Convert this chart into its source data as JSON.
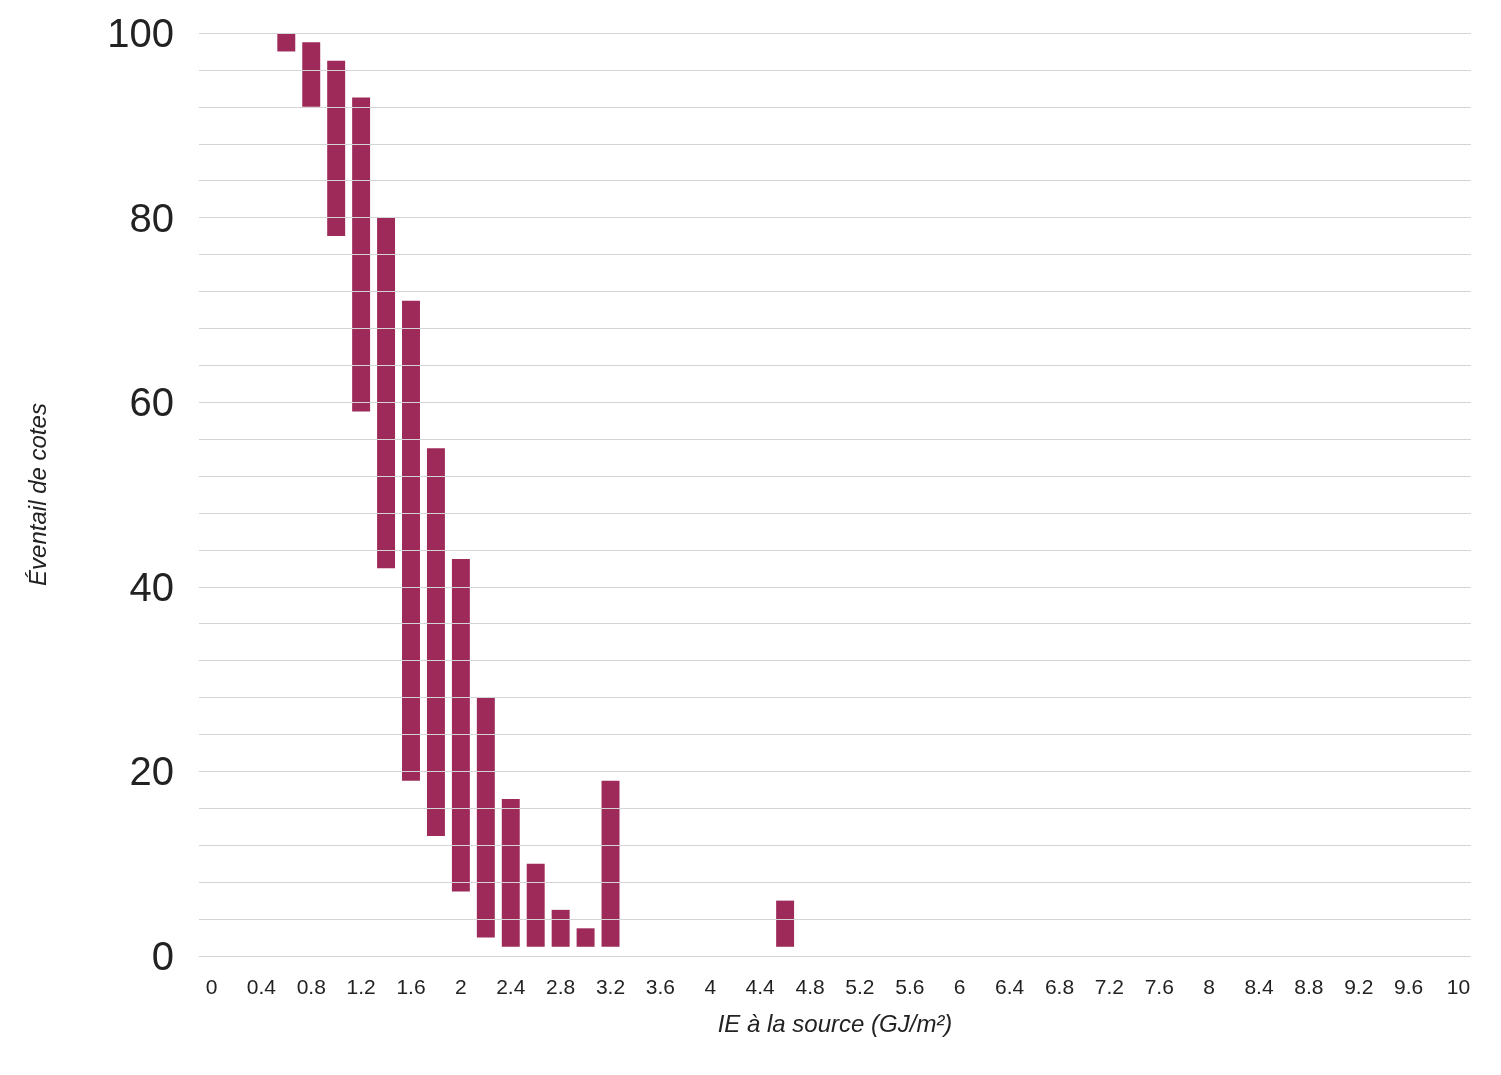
{
  "chart_data": {
    "type": "bar",
    "xlabel": "IE à la source (GJ/m²)",
    "ylabel": "Éventail de cotes",
    "categories": [
      "0",
      null,
      "0.4",
      null,
      "0.8",
      null,
      "1.2",
      null,
      "1.6",
      null,
      "2",
      null,
      "2.4",
      null,
      "2.8",
      null,
      "3.2",
      null,
      "3.6",
      null,
      "4",
      null,
      "4.4",
      null,
      "4.8",
      null,
      "5.2",
      null,
      "5.6",
      null,
      "6",
      null,
      "6.4",
      null,
      "6.8",
      null,
      "7.2",
      null,
      "7.6",
      null,
      "8",
      null,
      "8.4",
      null,
      "8.8",
      null,
      "9.2",
      null,
      "9.6",
      null,
      "10"
    ],
    "values": [
      null,
      null,
      null,
      2,
      7,
      19,
      34,
      38,
      52,
      42,
      36,
      26,
      16,
      9,
      4,
      2,
      18,
      null,
      null,
      null,
      null,
      null,
      null,
      5,
      null,
      null,
      null,
      null,
      null,
      null,
      null,
      null,
      null,
      null,
      null,
      null,
      null,
      null,
      null,
      null,
      null,
      null,
      null,
      null,
      null,
      null,
      null,
      null,
      null,
      null,
      null
    ],
    "base": [
      null,
      null,
      null,
      98,
      92,
      78,
      59,
      42,
      19,
      13,
      7,
      2,
      1,
      1,
      1,
      1,
      1,
      null,
      null,
      null,
      null,
      null,
      null,
      1,
      null,
      null,
      null,
      null,
      null,
      null,
      null,
      null,
      null,
      null,
      null,
      null,
      null,
      null,
      null,
      null,
      null,
      null,
      null,
      null,
      null,
      null,
      null,
      null,
      null,
      null,
      null
    ],
    "color": "#9e2a5a",
    "ylim": [
      0,
      100
    ],
    "yticks": [
      0,
      {
        "value": 4,
        "label": null
      },
      {
        "value": 8,
        "label": null
      },
      {
        "value": 12,
        "label": null
      },
      {
        "value": 16,
        "label": null
      },
      20,
      {
        "value": 24,
        "label": null
      },
      {
        "value": 28,
        "label": null
      },
      {
        "value": 32,
        "label": null
      },
      {
        "value": 36,
        "label": null
      },
      40,
      {
        "value": 44,
        "label": null
      },
      {
        "value": 48,
        "label": null
      },
      {
        "value": 52,
        "label": null
      },
      {
        "value": 56,
        "label": null
      },
      60,
      {
        "value": 64,
        "label": null
      },
      {
        "value": 68,
        "label": null
      },
      {
        "value": 72,
        "label": null
      },
      {
        "value": 76,
        "label": null
      },
      80,
      {
        "value": 84,
        "label": null
      },
      {
        "value": 88,
        "label": null
      },
      {
        "value": 92,
        "label": null
      },
      {
        "value": 96,
        "label": null
      },
      100
    ],
    "grid": "y"
  }
}
